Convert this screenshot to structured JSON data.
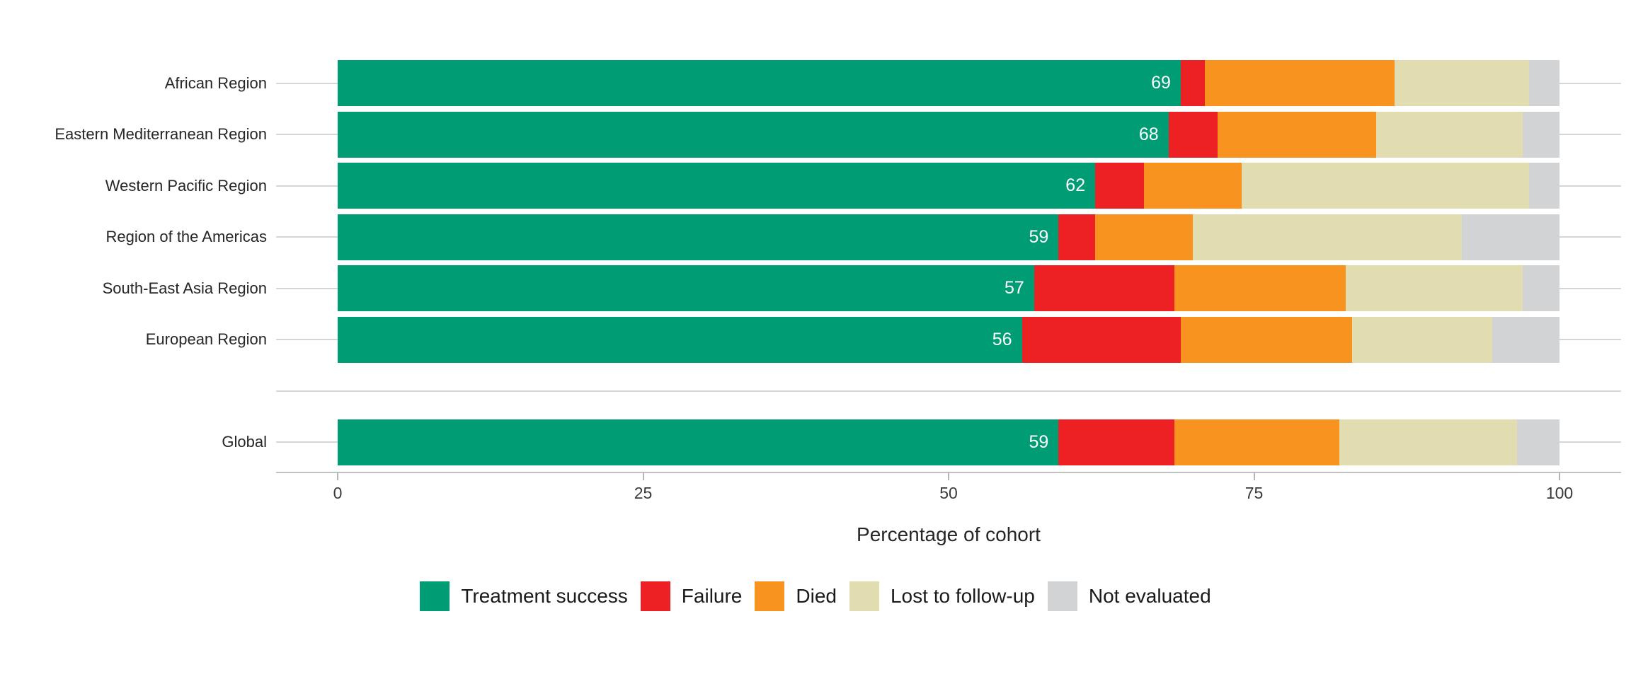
{
  "chart_data": {
    "type": "bar",
    "orientation": "horizontal",
    "stacked": true,
    "title": "",
    "xlabel": "Percentage of cohort",
    "ylabel": "",
    "xlim": [
      0,
      100
    ],
    "x_ticks": [
      0,
      25,
      50,
      75,
      100
    ],
    "grid": "horizontal-category-lines",
    "legend_position": "bottom",
    "gap_before_category": "Global",
    "categories": [
      "African Region",
      "Eastern Mediterranean Region",
      "Western Pacific Region",
      "Region of the Americas",
      "South-East Asia Region",
      "European Region",
      "Global"
    ],
    "series": [
      {
        "name": "Treatment success",
        "color": "#009c74",
        "values": [
          69,
          68,
          62,
          59,
          57,
          56,
          59
        ]
      },
      {
        "name": "Failure",
        "color": "#ed2024",
        "values": [
          2,
          4,
          4,
          3,
          11.5,
          13,
          9.5
        ]
      },
      {
        "name": "Died",
        "color": "#f7931e",
        "values": [
          15.5,
          13,
          8,
          8,
          14,
          14,
          13.5
        ]
      },
      {
        "name": "Lost to follow-up",
        "color": "#e2ddb0",
        "values": [
          11,
          12,
          23.5,
          22,
          14.5,
          11.5,
          14.5
        ]
      },
      {
        "name": "Not evaluated",
        "color": "#d1d3d4",
        "values": [
          2.5,
          3,
          2.5,
          8,
          3,
          5.5,
          3.5
        ]
      }
    ],
    "bar_value_labels": [
      69,
      68,
      62,
      59,
      57,
      56,
      59
    ]
  },
  "colors": {
    "treatment_success": "#009c74",
    "failure": "#ed2024",
    "died": "#f7931e",
    "lost_to_follow_up": "#e2ddb0",
    "not_evaluated": "#d1d3d4",
    "gridline": "#d6d6d6",
    "axis_line": "#c2c2c2",
    "bar_label_text": "#ffffff"
  }
}
